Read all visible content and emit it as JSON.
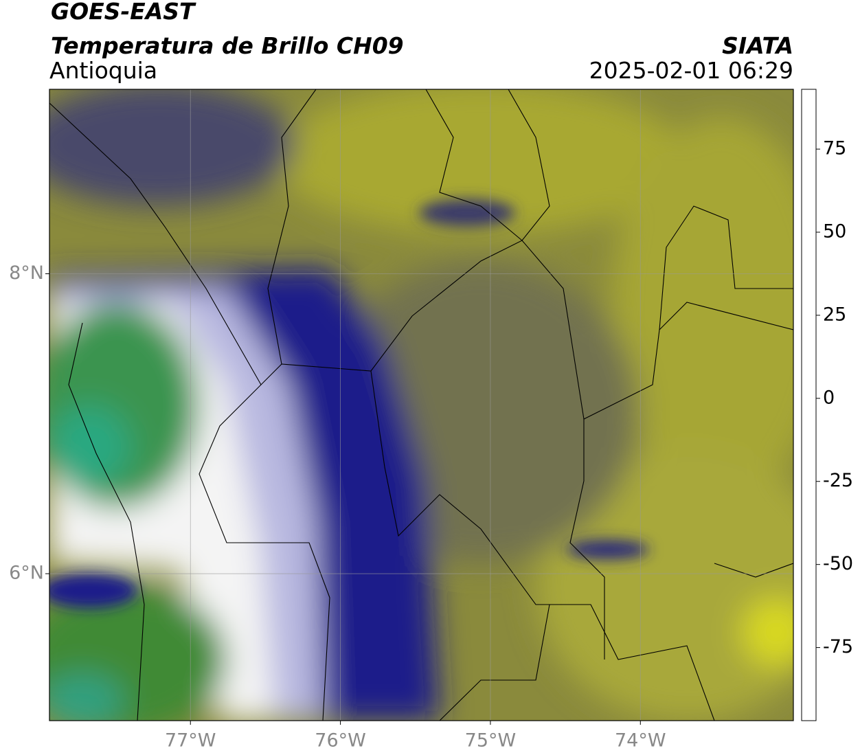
{
  "header": {
    "title": "GOES-EAST",
    "product": "Temperatura de Brillo CH09",
    "region": "Antioquia",
    "agency": "SIATA",
    "datetime": "2025-02-01 06:29"
  },
  "map": {
    "xlim": [
      -77.94,
      -72.98
    ],
    "ylim": [
      5.02,
      9.23
    ],
    "xticks": [
      {
        "value": -77,
        "label": "77°W"
      },
      {
        "value": -76,
        "label": "76°W"
      },
      {
        "value": -75,
        "label": "75°W"
      },
      {
        "value": -74,
        "label": "74°W"
      }
    ],
    "yticks": [
      {
        "value": 8,
        "label": "8°N"
      },
      {
        "value": 6,
        "label": "6°N"
      }
    ],
    "grid": true
  },
  "colorbar": {
    "lim": [
      -97,
      93
    ],
    "ticks": [
      75,
      50,
      25,
      0,
      -25,
      -50,
      -75
    ],
    "stops": [
      {
        "value": -97,
        "color": "#ffffff"
      },
      {
        "value": -94,
        "color": "#ffffff"
      },
      {
        "value": -93,
        "color": "#1ee8d8"
      },
      {
        "value": -80,
        "color": "#2aa07a"
      },
      {
        "value": -68,
        "color": "#3a8a30"
      },
      {
        "value": -60,
        "color": "#9dc08a"
      },
      {
        "value": -52,
        "color": "#ffffff"
      },
      {
        "value": -45,
        "color": "#9a9ad0"
      },
      {
        "value": -35,
        "color": "#1a1a8a"
      },
      {
        "value": -28,
        "color": "#000080"
      },
      {
        "value": -25,
        "color": "#505060"
      },
      {
        "value": -20,
        "color": "#8a8a30"
      },
      {
        "value": -15,
        "color": "#f0f000"
      },
      {
        "value": -5,
        "color": "#ff9900"
      },
      {
        "value": 5,
        "color": "#ff2a00"
      },
      {
        "value": 8,
        "color": "#ff0000"
      },
      {
        "value": 9,
        "color": "#000000"
      },
      {
        "value": 93,
        "color": "#000000"
      }
    ]
  }
}
